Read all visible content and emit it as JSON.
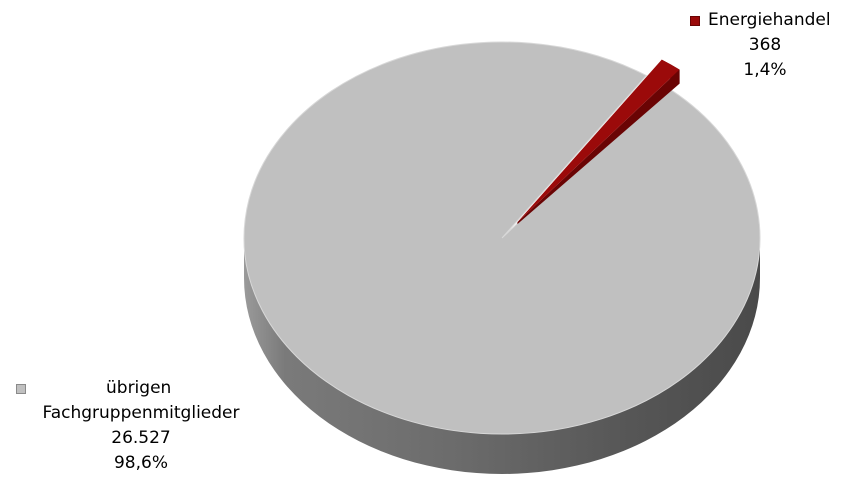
{
  "chart_data": {
    "type": "pie",
    "slices": [
      {
        "label": "Energiehandel",
        "value": 368,
        "value_text": "368",
        "percent": 1.4,
        "percent_text": "1,4%",
        "color": "#9b0a0a",
        "exploded": true
      },
      {
        "label": "übrigen Fachgruppenmitglieder",
        "label_lines": [
          "übrigen",
          "Fachgruppenmitglieder"
        ],
        "value": 26527,
        "value_text": "26.527",
        "percent": 98.6,
        "percent_text": "98,6%",
        "color": "#c0c0c0"
      }
    ],
    "style": "3d",
    "legend": "none (labels with legend keys beside slices)"
  }
}
